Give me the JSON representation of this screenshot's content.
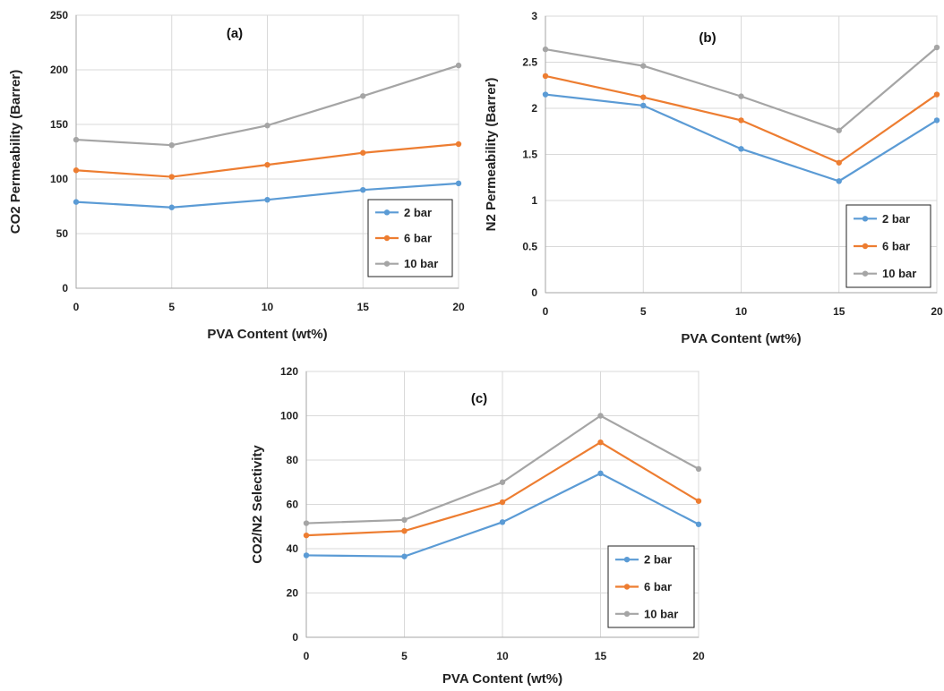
{
  "chart_data": [
    {
      "type": "line",
      "title": "(a)",
      "xlabel": "PVA  Content (wt%)",
      "ylabel": "CO2 Permeability (Barrer)",
      "x": [
        0,
        5,
        10,
        15,
        20
      ],
      "xlim": [
        0,
        20
      ],
      "xticks": [
        "0",
        "5",
        "10",
        "15",
        "20"
      ],
      "ylim": [
        0,
        250
      ],
      "yticks": [
        "0",
        "50",
        "100",
        "150",
        "200",
        "250"
      ],
      "grid": true,
      "legend_position": "bottom-right",
      "series": [
        {
          "name": "2 bar",
          "color": "#5B9BD5",
          "values": [
            79,
            74,
            81,
            90,
            96
          ]
        },
        {
          "name": "6 bar",
          "color": "#ED7D31",
          "values": [
            108,
            102,
            113,
            124,
            132
          ]
        },
        {
          "name": "10 bar",
          "color": "#A5A5A5",
          "values": [
            136,
            131,
            149,
            176,
            204
          ]
        }
      ]
    },
    {
      "type": "line",
      "title": "(b)",
      "xlabel": "PVA Content (wt%)",
      "ylabel": "N2 Permeability (Barrer)",
      "x": [
        0,
        5,
        10,
        15,
        20
      ],
      "xlim": [
        0,
        20
      ],
      "xticks": [
        "0",
        "5",
        "10",
        "15",
        "20"
      ],
      "ylim": [
        0,
        3
      ],
      "yticks": [
        "0",
        "0.5",
        "1",
        "1.5",
        "2",
        "2.5",
        "3"
      ],
      "grid": true,
      "legend_position": "bottom-right",
      "series": [
        {
          "name": "2 bar",
          "color": "#5B9BD5",
          "values": [
            2.15,
            2.03,
            1.56,
            1.21,
            1.87
          ]
        },
        {
          "name": "6 bar",
          "color": "#ED7D31",
          "values": [
            2.35,
            2.12,
            1.87,
            1.41,
            2.15
          ]
        },
        {
          "name": "10 bar",
          "color": "#A5A5A5",
          "values": [
            2.64,
            2.46,
            2.13,
            1.76,
            2.66
          ]
        }
      ]
    },
    {
      "type": "line",
      "title": "(c)",
      "xlabel": "PVA Content (wt%)",
      "ylabel": "CO2/N2 Selectivity",
      "x": [
        0,
        5,
        10,
        15,
        20
      ],
      "xlim": [
        0,
        20
      ],
      "xticks": [
        "0",
        "5",
        "10",
        "15",
        "20"
      ],
      "ylim": [
        0,
        120
      ],
      "yticks": [
        "0",
        "20",
        "40",
        "60",
        "80",
        "100",
        "120"
      ],
      "grid": true,
      "legend_position": "bottom-right",
      "series": [
        {
          "name": "2 bar",
          "color": "#5B9BD5",
          "values": [
            37,
            36.5,
            52,
            74,
            51
          ]
        },
        {
          "name": "6 bar",
          "color": "#ED7D31",
          "values": [
            46,
            48,
            61,
            88,
            61.5
          ]
        },
        {
          "name": "10 bar",
          "color": "#A5A5A5",
          "values": [
            51.5,
            53,
            70,
            100,
            76
          ]
        }
      ]
    }
  ]
}
